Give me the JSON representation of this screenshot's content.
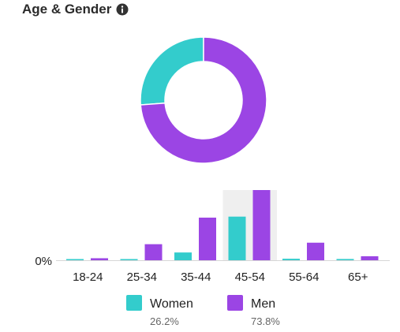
{
  "title": "Age & Gender",
  "chart_data": [
    {
      "type": "pie",
      "donut": true,
      "series": [
        {
          "name": "Women",
          "value": 26.2
        },
        {
          "name": "Men",
          "value": 73.8
        }
      ]
    },
    {
      "type": "bar",
      "categories": [
        "18-24",
        "25-34",
        "35-44",
        "45-54",
        "55-64",
        "65+"
      ],
      "series": [
        {
          "name": "Women",
          "values": [
            0.1,
            0.2,
            3.1,
            17.4,
            0.6,
            0.5
          ]
        },
        {
          "name": "Men",
          "values": [
            0.8,
            6.4,
            17.0,
            28.0,
            7.0,
            1.6
          ]
        }
      ],
      "ylim": [
        0,
        28
      ],
      "y_tick_label": "0%",
      "highlighted_category": "45-54",
      "grid": false
    }
  ],
  "legend": [
    {
      "name": "Women",
      "percent": "26.2%"
    },
    {
      "name": "Men",
      "percent": "73.8%"
    }
  ],
  "colors": {
    "women": "#33cccc",
    "men": "#9b45e4",
    "highlight": "#efefef",
    "axis": "#d6d6d6"
  }
}
